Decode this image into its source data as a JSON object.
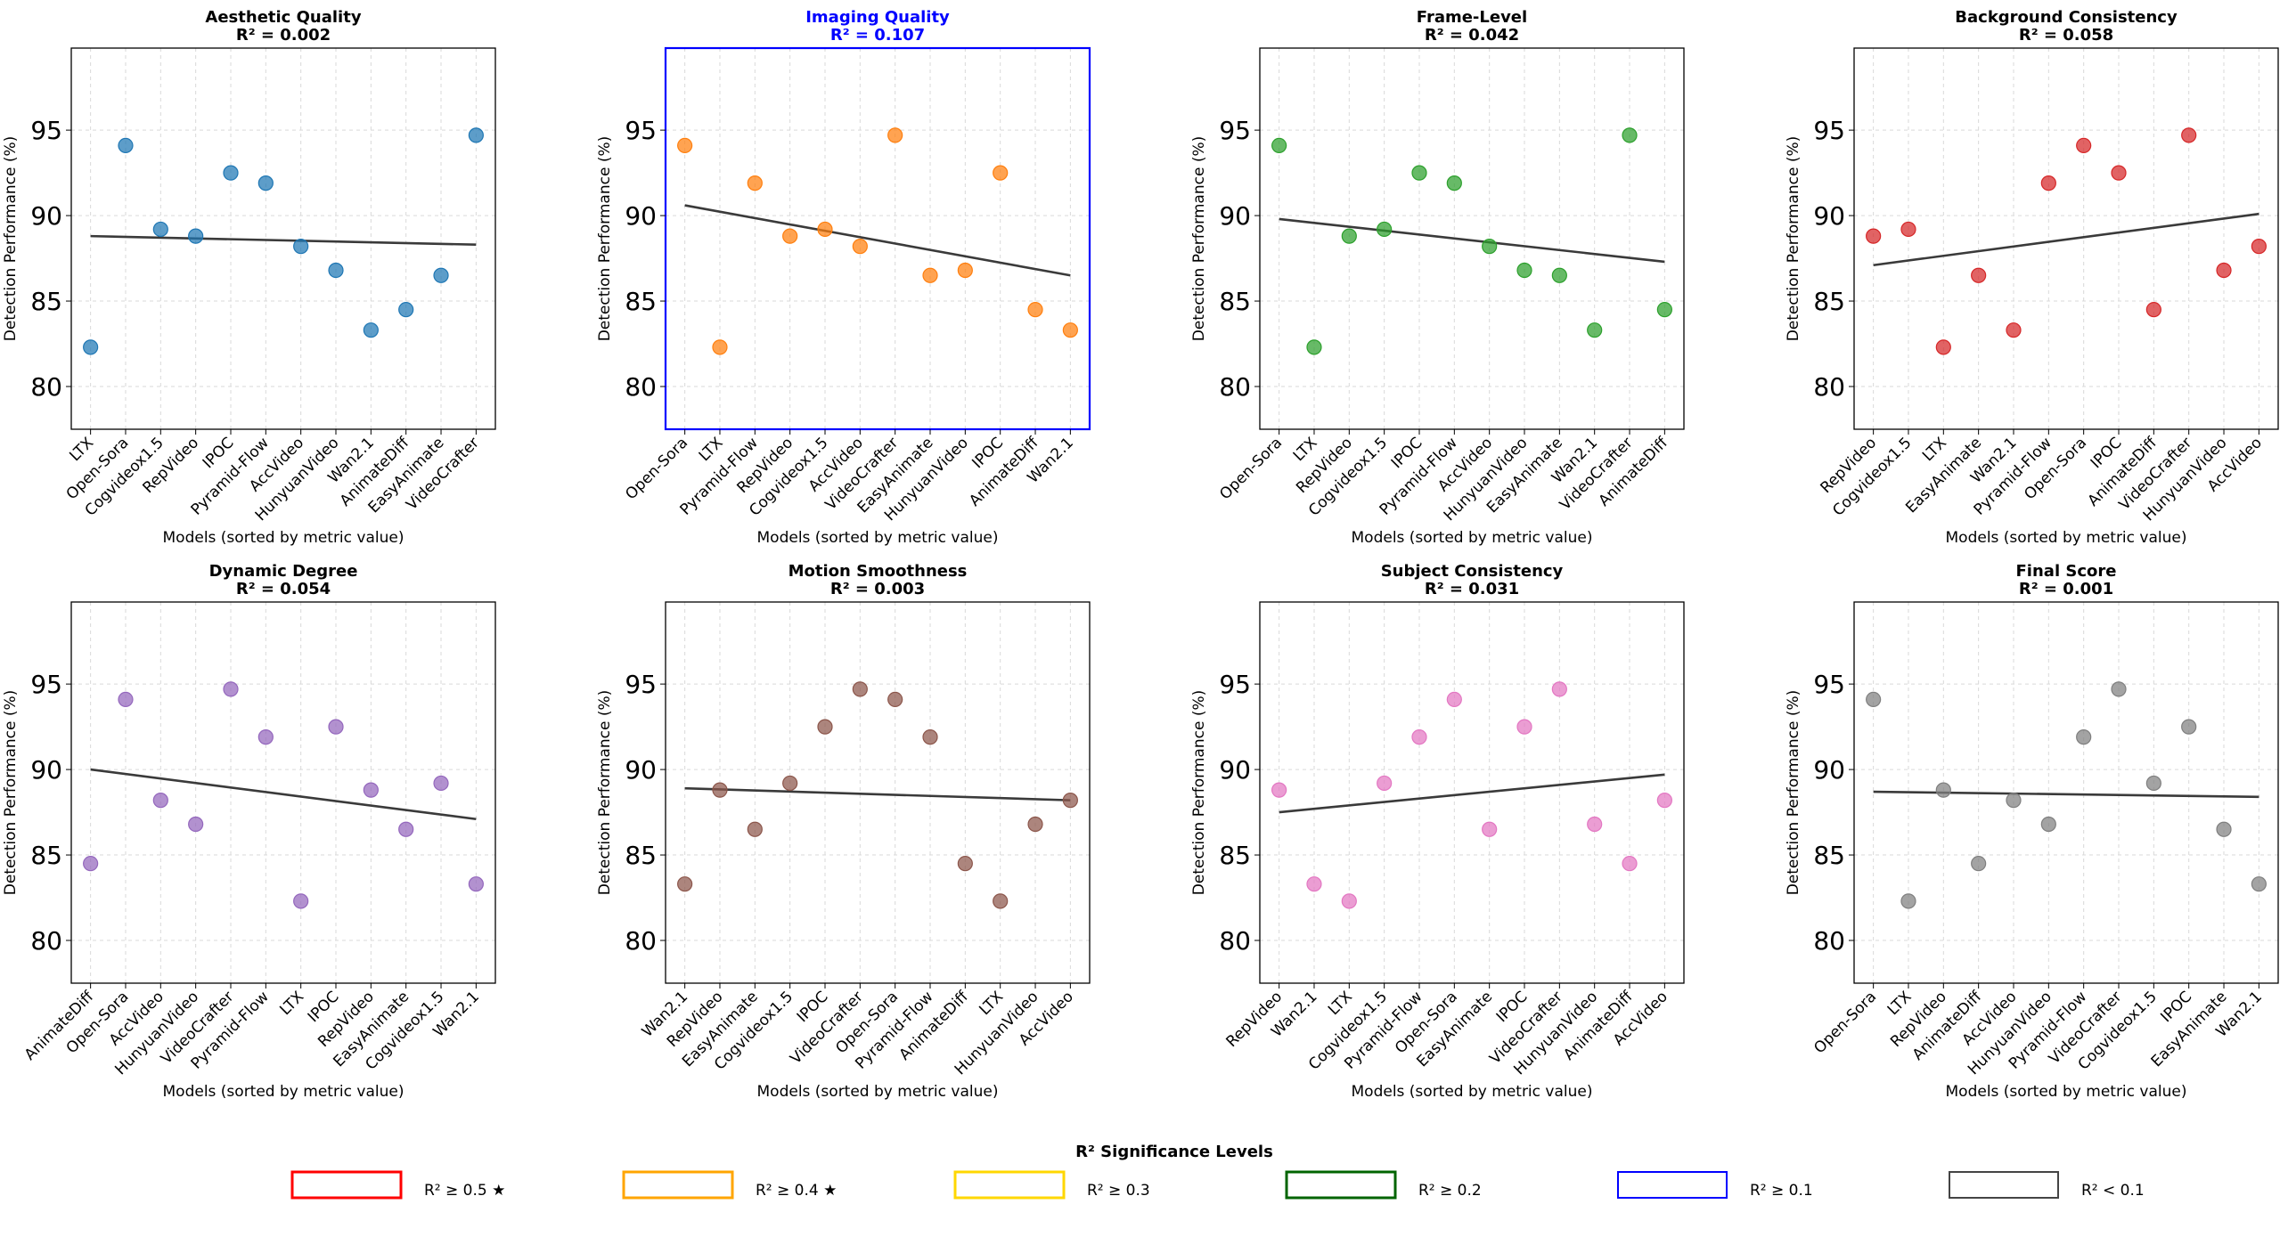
{
  "figure": {
    "xlabel": "Models (sorted by metric value)",
    "ylabel": "Detection Performance (%)"
  },
  "legend": {
    "title": "R² Significance Levels",
    "items": [
      {
        "label": "R² ≥ 0.5 ★",
        "color": "#ff0000"
      },
      {
        "label": "R² ≥ 0.4 ★",
        "color": "#ffa500"
      },
      {
        "label": "R² ≥ 0.3",
        "color": "#ffd700"
      },
      {
        "label": "R² ≥ 0.2",
        "color": "#006400"
      },
      {
        "label": "R² ≥ 0.1",
        "color": "#0000ff"
      },
      {
        "label": "R² < 0.1",
        "color": "#444444"
      }
    ]
  },
  "chart_data": [
    {
      "type": "scatter",
      "title": "Aesthetic Quality",
      "r2_label": "R² = 0.002",
      "title_color": "#000000",
      "frame_color": "#000000",
      "color": "#1f77b4",
      "categories": [
        "LTX",
        "Open-Sora",
        "Cogvideox1.5",
        "RepVideo",
        "IPOC",
        "Pyramid-Flow",
        "AccVideo",
        "HunyuanVideo",
        "Wan2.1",
        "AnimateDiff",
        "EasyAnimate",
        "VideoCrafter"
      ],
      "values": [
        82.3,
        94.1,
        89.2,
        88.8,
        92.5,
        91.9,
        88.2,
        86.8,
        83.3,
        84.5,
        86.5,
        94.7
      ],
      "fit": [
        88.8,
        88.3
      ],
      "ylim": [
        77.5,
        99.8
      ],
      "yticks": [
        80,
        85,
        90,
        95
      ],
      "grid": true
    },
    {
      "type": "scatter",
      "title": "Imaging Quality",
      "r2_label": "R² = 0.107",
      "title_color": "#0000ff",
      "frame_color": "#0000ff",
      "color": "#ff7f0e",
      "categories": [
        "Open-Sora",
        "LTX",
        "Pyramid-Flow",
        "RepVideo",
        "Cogvideox1.5",
        "AccVideo",
        "VideoCrafter",
        "EasyAnimate",
        "HunyuanVideo",
        "IPOC",
        "AnimateDiff",
        "Wan2.1"
      ],
      "values": [
        94.1,
        82.3,
        91.9,
        88.8,
        89.2,
        88.2,
        94.7,
        86.5,
        86.8,
        92.5,
        84.5,
        83.3
      ],
      "fit": [
        90.6,
        86.5
      ],
      "ylim": [
        77.5,
        99.8
      ],
      "yticks": [
        80,
        85,
        90,
        95
      ],
      "grid": true
    },
    {
      "type": "scatter",
      "title": "Frame-Level",
      "r2_label": "R² = 0.042",
      "title_color": "#000000",
      "frame_color": "#000000",
      "color": "#2ca02c",
      "categories": [
        "Open-Sora",
        "LTX",
        "RepVideo",
        "Cogvideox1.5",
        "IPOC",
        "Pyramid-Flow",
        "AccVideo",
        "HunyuanVideo",
        "EasyAnimate",
        "Wan2.1",
        "VideoCrafter",
        "AnimateDiff"
      ],
      "values": [
        94.1,
        82.3,
        88.8,
        89.2,
        92.5,
        91.9,
        88.2,
        86.8,
        86.5,
        83.3,
        94.7,
        84.5
      ],
      "fit": [
        89.8,
        87.3
      ],
      "ylim": [
        77.5,
        99.8
      ],
      "yticks": [
        80,
        85,
        90,
        95
      ],
      "grid": true
    },
    {
      "type": "scatter",
      "title": "Background Consistency",
      "r2_label": "R² = 0.058",
      "title_color": "#000000",
      "frame_color": "#000000",
      "color": "#d62728",
      "categories": [
        "RepVideo",
        "Cogvideox1.5",
        "LTX",
        "EasyAnimate",
        "Wan2.1",
        "Pyramid-Flow",
        "Open-Sora",
        "IPOC",
        "AnimateDiff",
        "VideoCrafter",
        "HunyuanVideo",
        "AccVideo"
      ],
      "values": [
        88.8,
        89.2,
        82.3,
        86.5,
        83.3,
        91.9,
        94.1,
        92.5,
        84.5,
        94.7,
        86.8,
        88.2
      ],
      "fit": [
        87.1,
        90.1
      ],
      "ylim": [
        77.5,
        99.8
      ],
      "yticks": [
        80,
        85,
        90,
        95
      ],
      "grid": true
    },
    {
      "type": "scatter",
      "title": "Dynamic Degree",
      "r2_label": "R² = 0.054",
      "title_color": "#000000",
      "frame_color": "#000000",
      "color": "#9467bd",
      "categories": [
        "AnimateDiff",
        "Open-Sora",
        "AccVideo",
        "HunyuanVideo",
        "VideoCrafter",
        "Pyramid-Flow",
        "LTX",
        "IPOC",
        "RepVideo",
        "EasyAnimate",
        "Cogvideox1.5",
        "Wan2.1"
      ],
      "values": [
        84.5,
        94.1,
        88.2,
        86.8,
        94.7,
        91.9,
        82.3,
        92.5,
        88.8,
        86.5,
        89.2,
        83.3
      ],
      "fit": [
        90.0,
        87.1
      ],
      "ylim": [
        77.5,
        99.8
      ],
      "yticks": [
        80,
        85,
        90,
        95
      ],
      "grid": true
    },
    {
      "type": "scatter",
      "title": "Motion Smoothness",
      "r2_label": "R² = 0.003",
      "title_color": "#000000",
      "frame_color": "#000000",
      "color": "#8c564b",
      "categories": [
        "Wan2.1",
        "RepVideo",
        "EasyAnimate",
        "Cogvideox1.5",
        "IPOC",
        "VideoCrafter",
        "Open-Sora",
        "Pyramid-Flow",
        "AnimateDiff",
        "LTX",
        "HunyuanVideo",
        "AccVideo"
      ],
      "values": [
        83.3,
        88.8,
        86.5,
        89.2,
        92.5,
        94.7,
        94.1,
        91.9,
        84.5,
        82.3,
        86.8,
        88.2
      ],
      "fit": [
        88.9,
        88.2
      ],
      "ylim": [
        77.5,
        99.8
      ],
      "yticks": [
        80,
        85,
        90,
        95
      ],
      "grid": true
    },
    {
      "type": "scatter",
      "title": "Subject Consistency",
      "r2_label": "R² = 0.031",
      "title_color": "#000000",
      "frame_color": "#000000",
      "color": "#e377c2",
      "categories": [
        "RepVideo",
        "Wan2.1",
        "LTX",
        "Cogvideox1.5",
        "Pyramid-Flow",
        "Open-Sora",
        "EasyAnimate",
        "IPOC",
        "VideoCrafter",
        "HunyuanVideo",
        "AnimateDiff",
        "AccVideo"
      ],
      "values": [
        88.8,
        83.3,
        82.3,
        89.2,
        91.9,
        94.1,
        86.5,
        92.5,
        94.7,
        86.8,
        84.5,
        88.2
      ],
      "fit": [
        87.5,
        89.7
      ],
      "ylim": [
        77.5,
        99.8
      ],
      "yticks": [
        80,
        85,
        90,
        95
      ],
      "grid": true
    },
    {
      "type": "scatter",
      "title": "Final Score",
      "r2_label": "R² = 0.001",
      "title_color": "#000000",
      "frame_color": "#000000",
      "color": "#7f7f7f",
      "categories": [
        "Open-Sora",
        "LTX",
        "RepVideo",
        "AnimateDiff",
        "AccVideo",
        "HunyuanVideo",
        "Pyramid-Flow",
        "VideoCrafter",
        "Cogvideox1.5",
        "IPOC",
        "EasyAnimate",
        "Wan2.1"
      ],
      "values": [
        94.1,
        82.3,
        88.8,
        84.5,
        88.2,
        86.8,
        91.9,
        94.7,
        89.2,
        92.5,
        86.5,
        83.3
      ],
      "fit": [
        88.7,
        88.4
      ],
      "ylim": [
        77.5,
        99.8
      ],
      "yticks": [
        80,
        85,
        90,
        95
      ],
      "grid": true
    }
  ]
}
